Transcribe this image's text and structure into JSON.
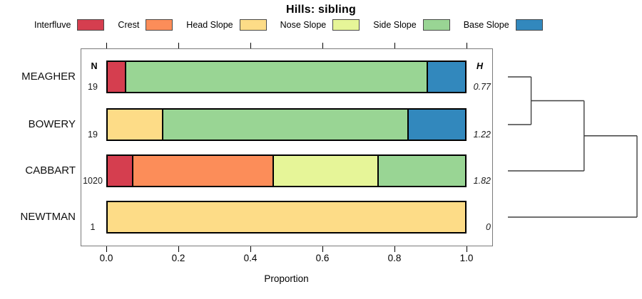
{
  "title": "Hills: sibling",
  "chart_data": {
    "type": "bar",
    "orientation": "horizontal-stacked",
    "title": "Hills: sibling",
    "xlabel": "Proportion",
    "xlim": [
      0,
      1
    ],
    "x_ticks": [
      0,
      0.2,
      0.4,
      0.6,
      0.8,
      1.0
    ],
    "x_tick_labels": [
      "0.0",
      "0.2",
      "0.4",
      "0.6",
      "0.8",
      "1.0"
    ],
    "n_column_header": "N",
    "h_column_header": "H",
    "categories": [
      {
        "name": "Interfluve",
        "color": "#D53E4F"
      },
      {
        "name": "Crest",
        "color": "#FC8D59"
      },
      {
        "name": "Head Slope",
        "color": "#FDDC87"
      },
      {
        "name": "Nose Slope",
        "color": "#E6F598"
      },
      {
        "name": "Side Slope",
        "color": "#99D594"
      },
      {
        "name": "Base Slope",
        "color": "#3288BD"
      }
    ],
    "rows": [
      {
        "label": "MEAGHER",
        "n": "19",
        "h": "0.77",
        "segments": [
          {
            "category": "Interfluve",
            "value": 0.052
          },
          {
            "category": "Side Slope",
            "value": 0.845
          },
          {
            "category": "Base Slope",
            "value": 0.103
          }
        ]
      },
      {
        "label": "BOWERY",
        "n": "19",
        "h": "1.22",
        "segments": [
          {
            "category": "Head Slope",
            "value": 0.156
          },
          {
            "category": "Side Slope",
            "value": 0.687
          },
          {
            "category": "Base Slope",
            "value": 0.157
          }
        ]
      },
      {
        "label": "CABBART",
        "n": "1020",
        "h": "1.82",
        "segments": [
          {
            "category": "Interfluve",
            "value": 0.071
          },
          {
            "category": "Crest",
            "value": 0.394
          },
          {
            "category": "Nose Slope",
            "value": 0.293
          },
          {
            "category": "Side Slope",
            "value": 0.242
          }
        ]
      },
      {
        "label": "NEWTMAN",
        "n": "1",
        "h": "0",
        "segments": [
          {
            "category": "Head Slope",
            "value": 1.0
          }
        ]
      }
    ],
    "dendrogram": {
      "leaves": [
        "MEAGHER",
        "BOWERY",
        "CABBART",
        "NEWTMAN"
      ],
      "merges": [
        {
          "members": [
            "MEAGHER",
            "BOWERY"
          ],
          "relative_height": 0.18
        },
        {
          "members": [
            "cluster-1",
            "CABBART"
          ],
          "relative_height": 0.59
        },
        {
          "members": [
            "cluster-2",
            "NEWTMAN"
          ],
          "relative_height": 1.0
        }
      ]
    }
  },
  "colors": {
    "bar_border": "#000000",
    "plot_box_border": "#7a7a7a",
    "dendrogram_line": "#404040"
  }
}
